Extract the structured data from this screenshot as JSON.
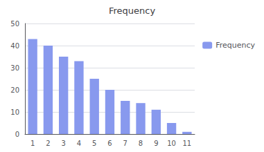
{
  "chart_data": {
    "type": "bar",
    "title": "Frequency",
    "categories": [
      1,
      2,
      3,
      4,
      5,
      6,
      7,
      8,
      9,
      10,
      11
    ],
    "series": [
      {
        "name": "Frequency",
        "color": "#8899ee",
        "values": [
          43,
          40,
          35,
          33,
          25,
          20,
          15,
          14,
          11,
          5,
          1
        ]
      }
    ],
    "ylim": [
      0,
      50
    ],
    "yticks": [
      0,
      10,
      20,
      30,
      40,
      50
    ],
    "grid": true,
    "legend": "right"
  }
}
